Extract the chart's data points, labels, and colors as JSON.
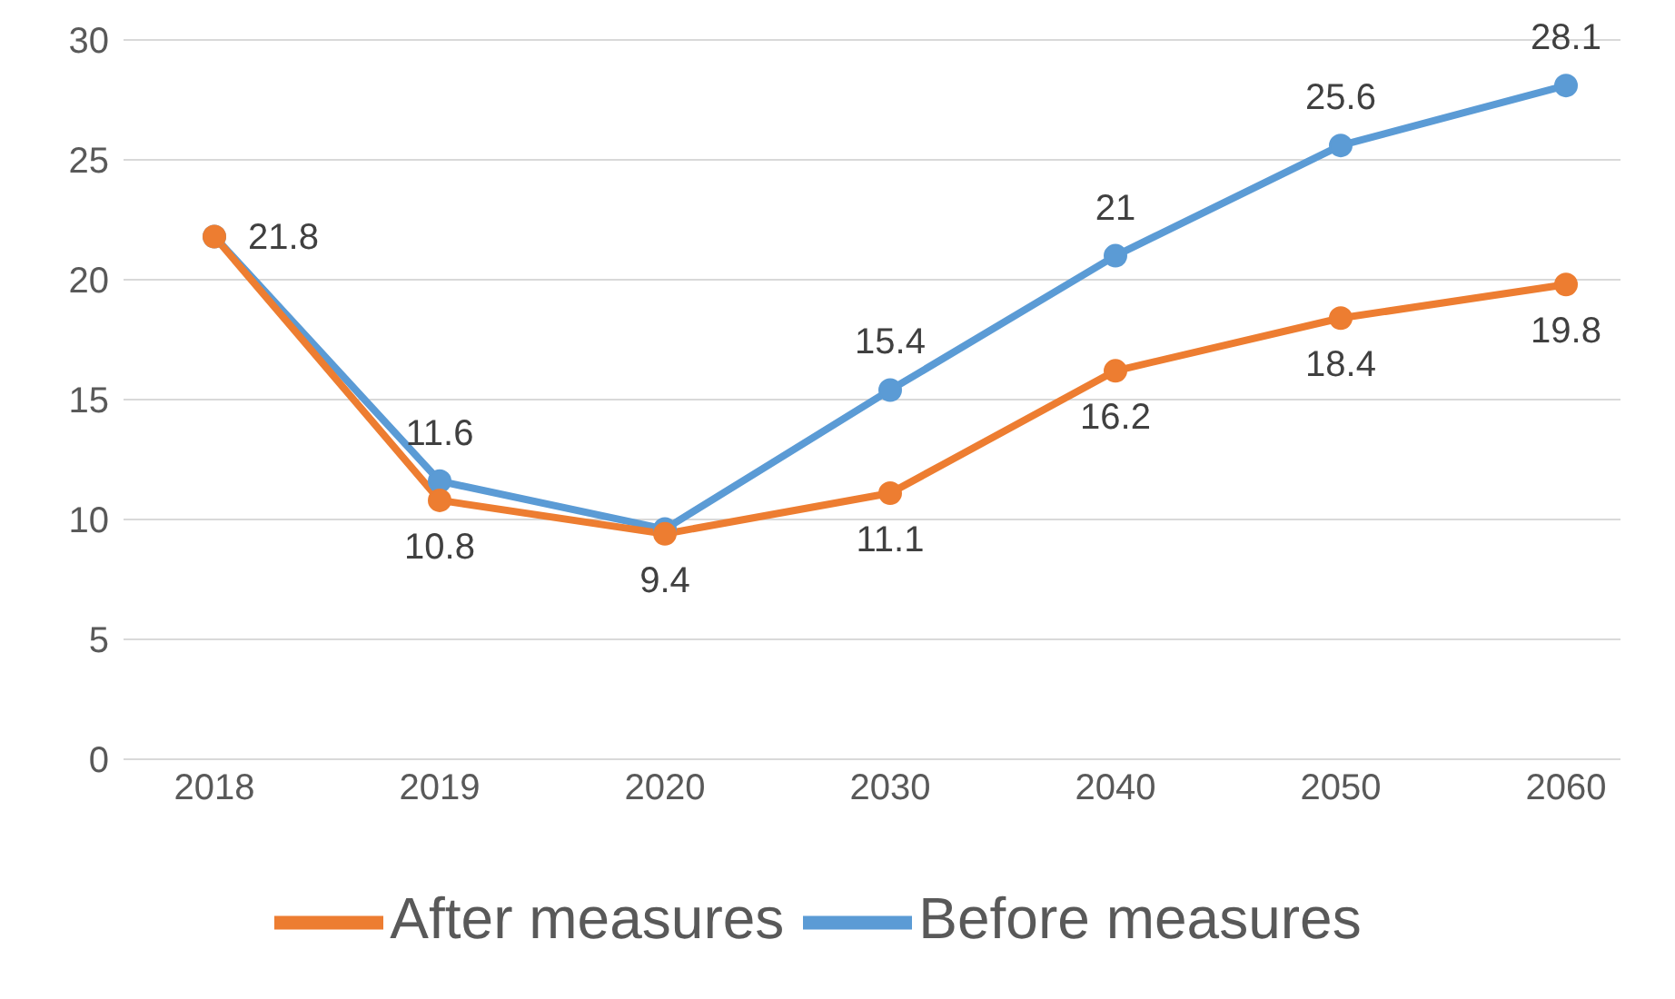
{
  "chart_data": {
    "type": "line",
    "categories": [
      "2018",
      "2019",
      "2020",
      "2030",
      "2040",
      "2050",
      "2060"
    ],
    "series": [
      {
        "name": "Before measures",
        "color": "#5b9bd5",
        "values": [
          21.8,
          11.6,
          9.6,
          15.4,
          21,
          25.6,
          28.1
        ],
        "value_labels": [
          null,
          "11.6",
          null,
          "15.4",
          "21",
          "25.6",
          "28.1"
        ]
      },
      {
        "name": "After measures",
        "color": "#ed7d31",
        "values": [
          21.8,
          10.8,
          9.4,
          11.1,
          16.2,
          18.4,
          19.8
        ],
        "value_labels": [
          "21.8",
          "10.8",
          "9.4",
          "11.1",
          "16.2",
          "18.4",
          "19.8"
        ]
      }
    ],
    "ylim": [
      0,
      30
    ],
    "yticks": [
      0,
      5,
      10,
      15,
      20,
      25,
      30
    ],
    "grid": "y",
    "legend": "bottom",
    "marker": "circle",
    "line_style": "solid"
  }
}
